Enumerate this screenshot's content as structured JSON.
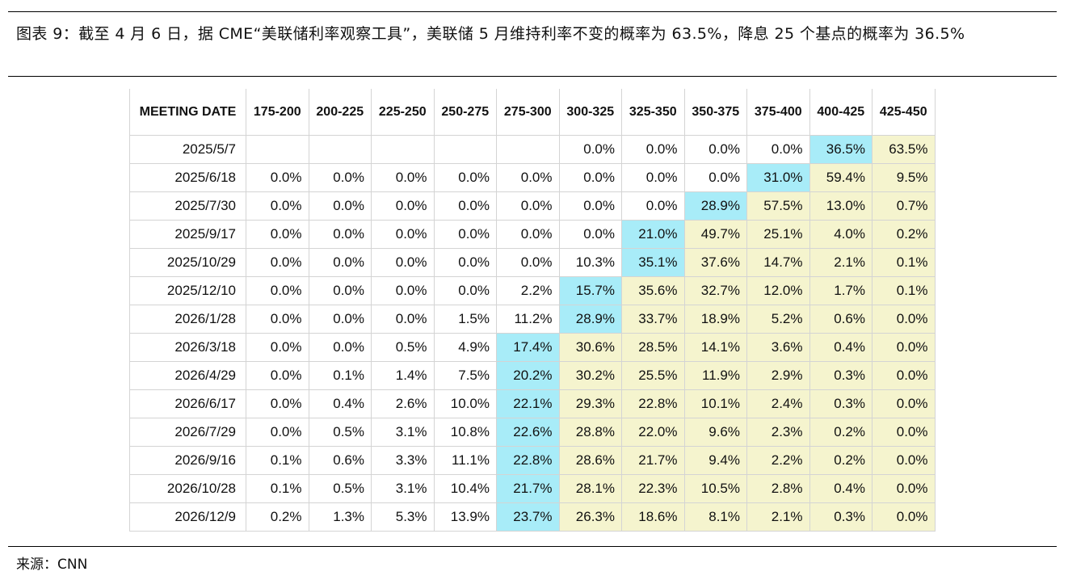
{
  "caption": "图表 9：截至 4 月 6 日，据 CME“美联储利率观察工具”，美联储 5 月维持利率不变的概率为 63.5%，降息 25 个基点的概率为 36.5%",
  "source": "来源：CNN",
  "table": {
    "headers": [
      "MEETING DATE",
      "175-200",
      "200-225",
      "225-250",
      "250-275",
      "275-300",
      "300-325",
      "325-350",
      "350-375",
      "375-400",
      "400-425",
      "425-450"
    ],
    "rows": [
      {
        "date": "2025/5/7",
        "values": [
          "",
          "",
          "",
          "",
          "",
          "0.0%",
          "0.0%",
          "0.0%",
          "0.0%",
          "36.5%",
          "63.5%"
        ]
      },
      {
        "date": "2025/6/18",
        "values": [
          "0.0%",
          "0.0%",
          "0.0%",
          "0.0%",
          "0.0%",
          "0.0%",
          "0.0%",
          "0.0%",
          "31.0%",
          "59.4%",
          "9.5%"
        ]
      },
      {
        "date": "2025/7/30",
        "values": [
          "0.0%",
          "0.0%",
          "0.0%",
          "0.0%",
          "0.0%",
          "0.0%",
          "0.0%",
          "28.9%",
          "57.5%",
          "13.0%",
          "0.7%"
        ]
      },
      {
        "date": "2025/9/17",
        "values": [
          "0.0%",
          "0.0%",
          "0.0%",
          "0.0%",
          "0.0%",
          "0.0%",
          "21.0%",
          "49.7%",
          "25.1%",
          "4.0%",
          "0.2%"
        ]
      },
      {
        "date": "2025/10/29",
        "values": [
          "0.0%",
          "0.0%",
          "0.0%",
          "0.0%",
          "0.0%",
          "10.3%",
          "35.1%",
          "37.6%",
          "14.7%",
          "2.1%",
          "0.1%"
        ]
      },
      {
        "date": "2025/12/10",
        "values": [
          "0.0%",
          "0.0%",
          "0.0%",
          "0.0%",
          "2.2%",
          "15.7%",
          "35.6%",
          "32.7%",
          "12.0%",
          "1.7%",
          "0.1%"
        ]
      },
      {
        "date": "2026/1/28",
        "values": [
          "0.0%",
          "0.0%",
          "0.0%",
          "1.5%",
          "11.2%",
          "28.9%",
          "33.7%",
          "18.9%",
          "5.2%",
          "0.6%",
          "0.0%"
        ]
      },
      {
        "date": "2026/3/18",
        "values": [
          "0.0%",
          "0.0%",
          "0.5%",
          "4.9%",
          "17.4%",
          "30.6%",
          "28.5%",
          "14.1%",
          "3.6%",
          "0.4%",
          "0.0%"
        ]
      },
      {
        "date": "2026/4/29",
        "values": [
          "0.0%",
          "0.1%",
          "1.4%",
          "7.5%",
          "20.2%",
          "30.2%",
          "25.5%",
          "11.9%",
          "2.9%",
          "0.3%",
          "0.0%"
        ]
      },
      {
        "date": "2026/6/17",
        "values": [
          "0.0%",
          "0.4%",
          "2.6%",
          "10.0%",
          "22.1%",
          "29.3%",
          "22.8%",
          "10.1%",
          "2.4%",
          "0.3%",
          "0.0%"
        ]
      },
      {
        "date": "2026/7/29",
        "values": [
          "0.0%",
          "0.5%",
          "3.1%",
          "10.8%",
          "22.6%",
          "28.8%",
          "22.0%",
          "9.6%",
          "2.3%",
          "0.2%",
          "0.0%"
        ]
      },
      {
        "date": "2026/9/16",
        "values": [
          "0.1%",
          "0.6%",
          "3.3%",
          "11.1%",
          "22.8%",
          "28.6%",
          "21.7%",
          "9.4%",
          "2.2%",
          "0.2%",
          "0.0%"
        ]
      },
      {
        "date": "2026/10/28",
        "values": [
          "0.1%",
          "0.5%",
          "3.1%",
          "10.4%",
          "21.7%",
          "28.1%",
          "22.3%",
          "10.5%",
          "2.8%",
          "0.4%",
          "0.0%"
        ]
      },
      {
        "date": "2026/12/9",
        "values": [
          "0.2%",
          "1.3%",
          "5.3%",
          "13.9%",
          "23.7%",
          "26.3%",
          "18.6%",
          "8.1%",
          "2.1%",
          "0.3%",
          "0.0%"
        ]
      }
    ],
    "most_likely_col": [
      10,
      9,
      8,
      7,
      7,
      6,
      6,
      5,
      5,
      5,
      5,
      5,
      5,
      5
    ],
    "colors": {
      "most_likely": "#a8ecf8",
      "higher_than_current": "#f5f4ce",
      "current_target_col": 10
    }
  }
}
